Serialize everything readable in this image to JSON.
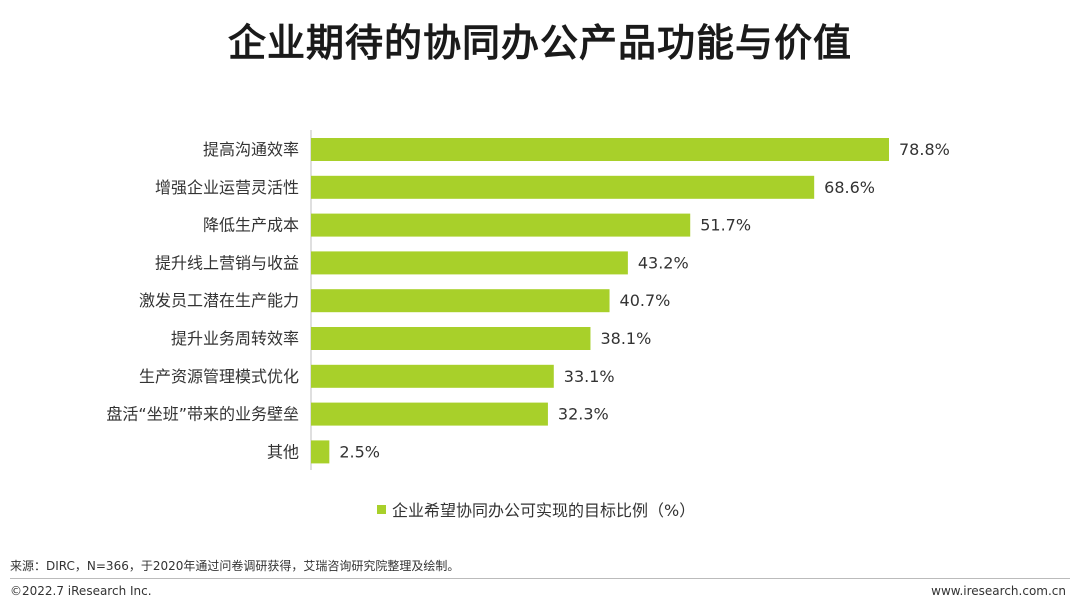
{
  "title": "企业期待的协同办公产品功能与价值",
  "chart_data": {
    "type": "bar",
    "orientation": "horizontal",
    "categories": [
      "提高沟通效率",
      "增强企业运营灵活性",
      "降低生产成本",
      "提升线上营销与收益",
      "激发员工潜在生产能力",
      "提升业务周转效率",
      "生产资源管理模式优化",
      "盘活“坐班”带来的业务壁垒",
      "其他"
    ],
    "values": [
      78.8,
      68.6,
      51.7,
      43.2,
      40.7,
      38.1,
      33.1,
      32.3,
      2.5
    ],
    "value_labels": [
      "78.8%",
      "68.6%",
      "51.7%",
      "43.2%",
      "40.7%",
      "38.1%",
      "33.1%",
      "32.3%",
      "2.5%"
    ],
    "series_name": "企业希望协同办公可实现的目标比例（%）",
    "xlim": [
      0,
      100
    ],
    "grid": false,
    "legend_position": "bottom",
    "bar_color": "#a8d02a"
  },
  "legend": {
    "label": "企业希望协同办公可实现的目标比例（%）"
  },
  "footer": {
    "source": "来源：DIRC，N=366，于2020年通过问卷调研获得，艾瑞咨询研究院整理及绘制。",
    "copyright": "©2022.7 iResearch Inc.",
    "website": "www.iresearch.com.cn"
  }
}
